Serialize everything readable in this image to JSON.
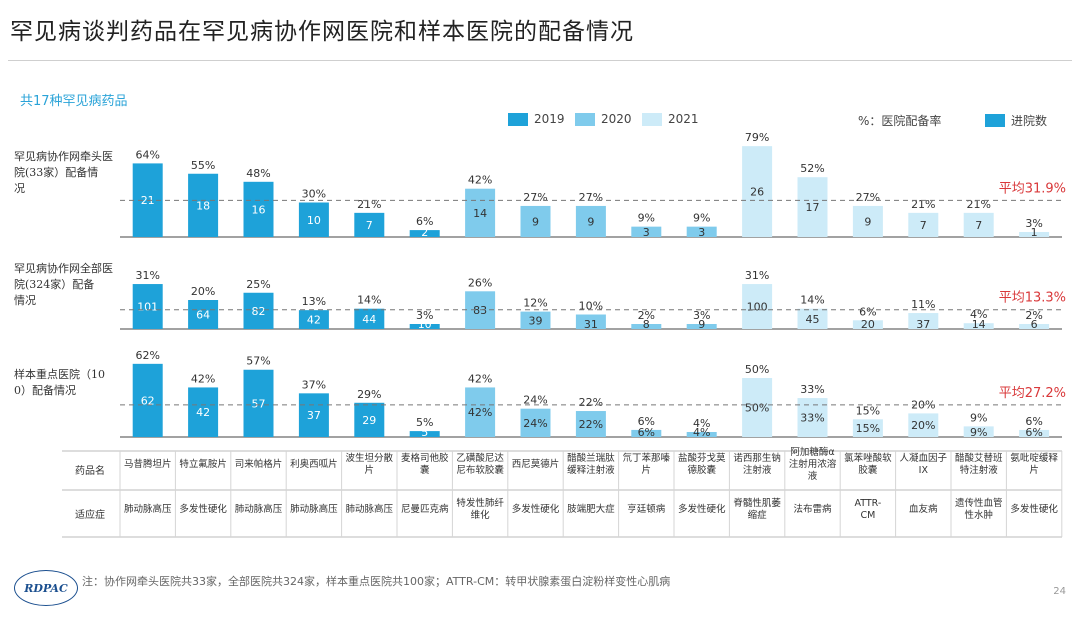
{
  "page": {
    "title": "罕见病谈判药品在罕见病协作网医院和样本医院的配备情况",
    "subtitle": "共17种罕见病药品",
    "footnote": "注：协作网牵头医院共33家，全部医院共324家，样本重点医院共100家；ATTR-CM：转甲状腺素蛋白淀粉样变性心肌病",
    "logo": "RDPAC",
    "page_number": "24"
  },
  "legend": {
    "items": [
      {
        "label": "2019",
        "color": "#1ea2d9"
      },
      {
        "label": "2020",
        "color": "#7fcbec"
      },
      {
        "label": "2021",
        "color": "#cdebf8"
      }
    ],
    "note_left": "%：医院配备率",
    "note_right": "进院数"
  },
  "colors": {
    "y2019": "#1ea2d9",
    "y2020": "#7fcbec",
    "y2021": "#cdebf8",
    "avg": "#d9383a",
    "rule": "#cfcfcf"
  },
  "chart_data": {
    "type": "bar",
    "categories": [
      "马昔腾坦片",
      "特立氟胺片",
      "司来帕格片",
      "利奥西呱片",
      "波生坦分散片",
      "麦格司他胶囊",
      "乙磺酸尼达尼布软胶囊",
      "西尼莫德片",
      "醋酸兰瑞肽缓释注射液",
      "氘丁苯那嗪片",
      "盐酸芬戈莫德胶囊",
      "诺西那生钠注射液",
      "阿加糖酶α注射用浓溶液",
      "氯苯唑酸软胶囊",
      "人凝血因子IX",
      "醋酸艾替班特注射液",
      "氨吡啶缓释片"
    ],
    "indications": [
      "肺动脉高压",
      "多发性硬化",
      "肺动脉高压",
      "肺动脉高压",
      "肺动脉高压",
      "尼曼匹克病",
      "特发性肺纤维化",
      "多发性硬化",
      "肢端肥大症",
      "亨廷顿病",
      "多发性硬化",
      "脊髓性肌萎缩症",
      "法布雷病",
      "ATTR-CM",
      "血友病",
      "遗传性血管性水肿",
      "多发性硬化"
    ],
    "row_header_label": "药品名",
    "row_header_indication": "适应症",
    "panels": [
      {
        "label": "罕见病协作网牵头医院(33家）配备情况",
        "average_label": "平均31.9%",
        "percent_labels": [
          "64%",
          "55%",
          "48%",
          "30%",
          "21%",
          "6%",
          "42%",
          "27%",
          "27%",
          "9%",
          "9%",
          "79%",
          "52%",
          "27%",
          "21%",
          "21%",
          "3%"
        ],
        "rates": [
          64,
          55,
          48,
          30,
          21,
          6,
          42,
          27,
          27,
          9,
          9,
          79,
          52,
          27,
          21,
          21,
          3
        ],
        "count_labels": [
          "21",
          "18",
          "16",
          "10",
          "7",
          "2",
          "14",
          "9",
          "9",
          "3",
          "3",
          "26",
          "17",
          "9",
          "7",
          "7",
          "1"
        ],
        "years": [
          2019,
          2019,
          2019,
          2019,
          2019,
          2019,
          2020,
          2020,
          2020,
          2020,
          2020,
          2021,
          2021,
          2021,
          2021,
          2021,
          2021
        ]
      },
      {
        "label": "罕见病协作网全部医院(324家）配备情况",
        "average_label": "平均13.3%",
        "percent_labels": [
          "31%",
          "20%",
          "25%",
          "13%",
          "14%",
          "3%",
          "26%",
          "12%",
          "10%",
          "2%",
          "3%",
          "31%",
          "14%",
          "6%",
          "11%",
          "4%",
          "2%"
        ],
        "rates": [
          31,
          20,
          25,
          13,
          14,
          3,
          26,
          12,
          10,
          2,
          3,
          31,
          14,
          6,
          11,
          4,
          2
        ],
        "count_labels": [
          "101",
          "64",
          "82",
          "42",
          "44",
          "10",
          "83",
          "39",
          "31",
          "8",
          "9",
          "100",
          "45",
          "20",
          "37",
          "14",
          "6"
        ],
        "years": [
          2019,
          2019,
          2019,
          2019,
          2019,
          2019,
          2020,
          2020,
          2020,
          2020,
          2020,
          2021,
          2021,
          2021,
          2021,
          2021,
          2021
        ]
      },
      {
        "label": "样本重点医院（100）配备情况",
        "average_label": "平均27.2%",
        "percent_labels": [
          "62%",
          "42%",
          "57%",
          "37%",
          "29%",
          "5%",
          "42%",
          "24%",
          "22%",
          "6%",
          "4%",
          "50%",
          "33%",
          "15%",
          "20%",
          "9%",
          "6%"
        ],
        "rates": [
          62,
          42,
          57,
          37,
          29,
          5,
          42,
          24,
          22,
          6,
          4,
          50,
          33,
          15,
          20,
          9,
          6
        ],
        "count_labels": [
          "62",
          "42",
          "57",
          "37",
          "29",
          "5",
          "42%",
          "24%",
          "22%",
          "6%",
          "4%",
          "50%",
          "33%",
          "15%",
          "20%",
          "9%",
          "6%"
        ],
        "years": [
          2019,
          2019,
          2019,
          2019,
          2019,
          2019,
          2020,
          2020,
          2020,
          2020,
          2020,
          2021,
          2021,
          2021,
          2021,
          2021,
          2021
        ]
      }
    ]
  }
}
